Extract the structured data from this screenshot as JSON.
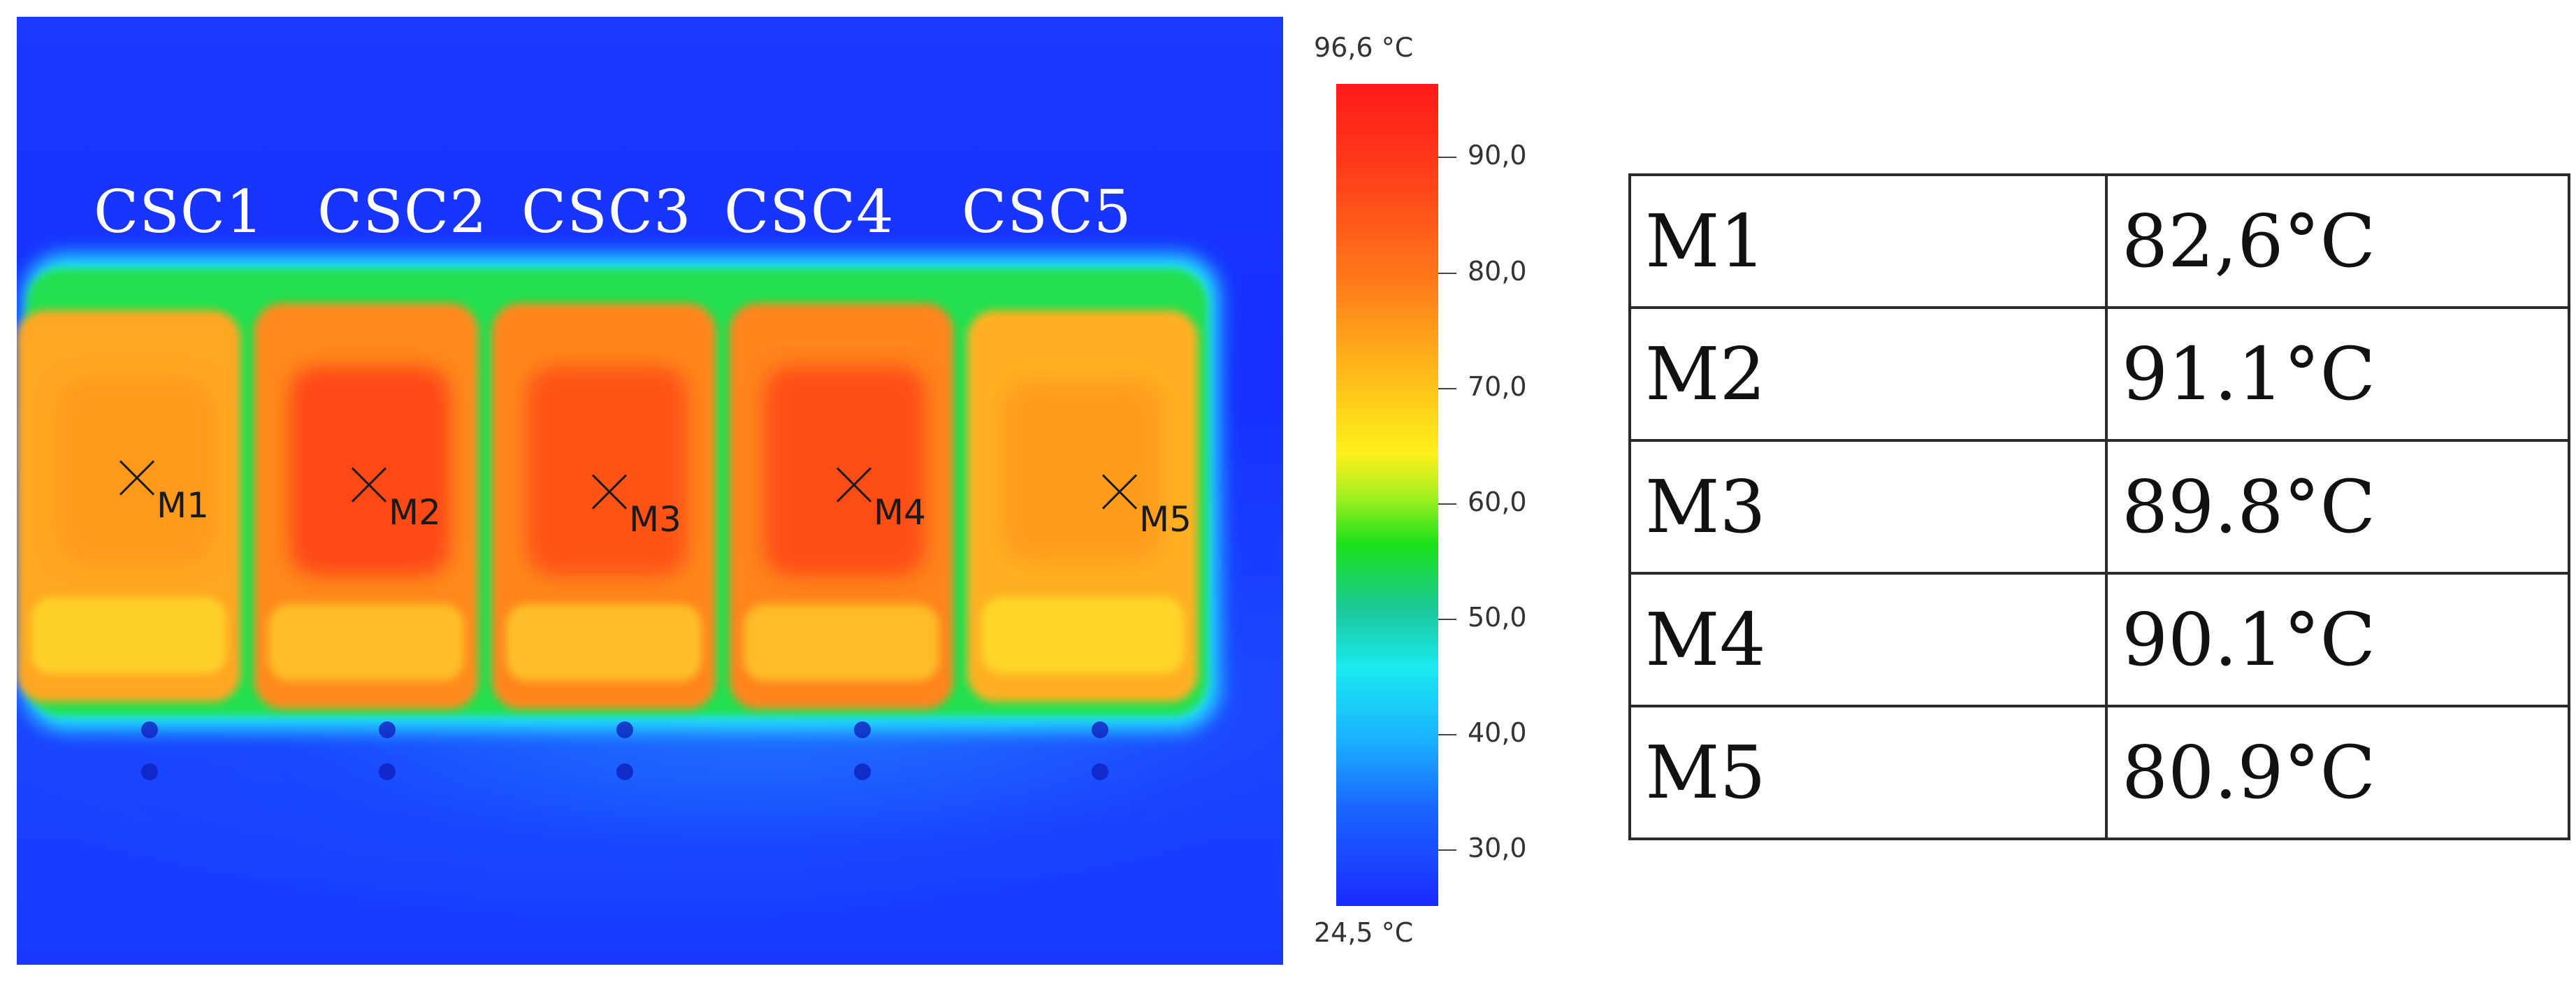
{
  "thermal_image": {
    "module_labels": [
      "CSC1",
      "CSC2",
      "CSC3",
      "CSC4",
      "CSC5"
    ],
    "markers": [
      "M1",
      "M2",
      "M3",
      "M4",
      "M5"
    ]
  },
  "color_scale": {
    "max_label": "96,6 °C",
    "min_label": "24,5 °C",
    "tick_labels": [
      "90,0",
      "80,0",
      "70,0",
      "60,0",
      "50,0",
      "40,0",
      "30,0"
    ],
    "palette": [
      "#ff1a1a",
      "#ffb41a",
      "#fff01a",
      "#1ae01a",
      "#1aeaf0",
      "#1a66ff",
      "#1a2aff"
    ]
  },
  "measurements": [
    {
      "point": "M1",
      "value": "82,6°C"
    },
    {
      "point": "M2",
      "value": "91.1°C"
    },
    {
      "point": "M3",
      "value": "89.8°C"
    },
    {
      "point": "M4",
      "value": "90.1°C"
    },
    {
      "point": "M5",
      "value": "80.9°C"
    }
  ]
}
